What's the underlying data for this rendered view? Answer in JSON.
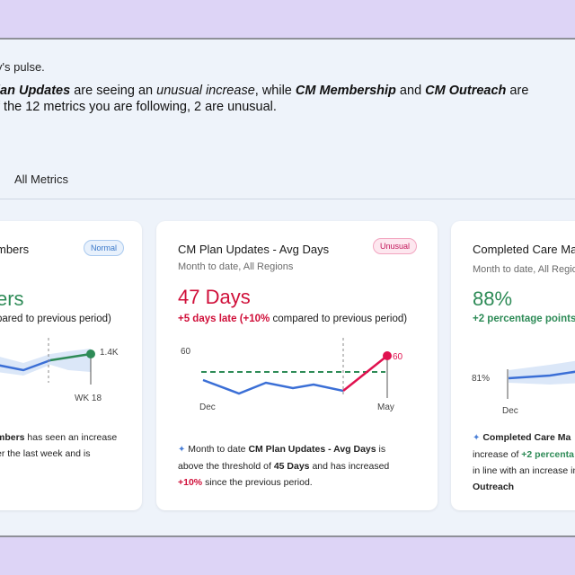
{
  "summary": {
    "pulse_text": "y's pulse.",
    "insight": {
      "p1": "lan Updates",
      "p2": " are seeing an ",
      "p3": "unusual increase",
      "p4": ", while ",
      "p5": "CM Membership",
      "p6": " and ",
      "p7": "CM Outreach",
      "p8": " are",
      "line2": "f the 12 metrics you are following, 2 are unusual."
    }
  },
  "tabs": {
    "all_metrics": "All Metrics"
  },
  "cards": [
    {
      "title": "mbers",
      "status": "Normal",
      "metric_value": "ers",
      "change_text": "pared to previous period)",
      "chart": {
        "value_label": "1.4K",
        "x_label": "WK 18"
      },
      "desc": {
        "bold": "mbers",
        "t1": " has seen an increase",
        "t2": "er the last week and is"
      }
    },
    {
      "title": "CM Plan Updates - Avg Days",
      "subtitle": "Month to date, All Regions",
      "status": "Unusual",
      "metric_value": "47 Days",
      "change_prefix": "+5 days late (+10%",
      "change_suffix": " compared to previous period)",
      "chart": {
        "y_label": "60",
        "end_label": "60",
        "x_start": "Dec",
        "x_end": "May"
      },
      "desc": {
        "t1": " Month to date ",
        "b1": "CM Plan Updates - Avg Days",
        "t2": " is",
        "t3": "above the threshold of ",
        "b2": "45 Days",
        "t4": " and has increased",
        "r1": "+10%",
        "t5": " since the previous period."
      }
    },
    {
      "title": "Completed Care Ma",
      "subtitle": "Month to date, All Regio",
      "metric_value": "88%",
      "change_text": "+2 percentage points",
      "chart": {
        "y_label": "81%",
        "x_start": "Dec"
      },
      "desc": {
        "b1": "Completed Care Ma",
        "t1": "increase of ",
        "g1": "+2 percenta",
        "t2": "in line with an increase in",
        "b2": "Outreach"
      }
    }
  ],
  "colors": {
    "accent_blue": "#3b6fd6",
    "band_blue": "#dbe7f8",
    "green": "#2e8b57",
    "red": "#e0124f",
    "threshold": "#2e8b57"
  }
}
